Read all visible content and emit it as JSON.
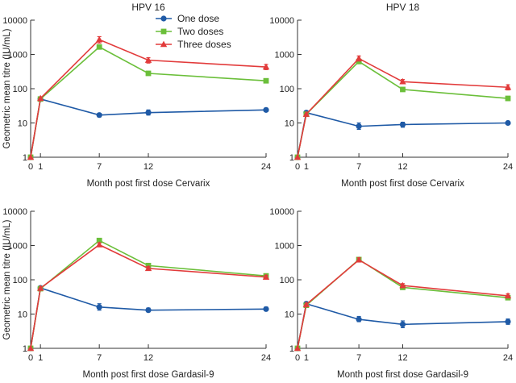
{
  "chart_data": [
    {
      "type": "line",
      "title": "HPV 16",
      "xlabel": "Month post first dose Cervarix",
      "ylabel": "Geometric mean titre (IU/mL)",
      "yscale": "log",
      "ylim": [
        1,
        10000
      ],
      "yticks": [
        1,
        10,
        100,
        1000,
        10000
      ],
      "xlim": [
        0,
        24
      ],
      "xticks": [
        0,
        1,
        7,
        12,
        24
      ],
      "series": [
        {
          "name": "One dose",
          "color": "#1f5aa6",
          "marker": "circle",
          "points": [
            [
              0,
              1
            ],
            [
              1,
              50
            ],
            [
              7,
              17
            ],
            [
              12,
              20
            ],
            [
              24,
              24
            ]
          ],
          "errors": [
            [
              7,
              15,
              19
            ],
            [
              12,
              17,
              24
            ],
            [
              24,
              22,
              27
            ]
          ]
        },
        {
          "name": "Two doses",
          "color": "#6bbf3a",
          "marker": "square",
          "points": [
            [
              0,
              1
            ],
            [
              1,
              50
            ],
            [
              7,
              1650
            ],
            [
              12,
              280
            ],
            [
              24,
              170
            ]
          ],
          "errors": [
            [
              7,
              1450,
              1880
            ],
            [
              12,
              250,
              310
            ],
            [
              24,
              150,
              190
            ]
          ]
        },
        {
          "name": "Three doses",
          "color": "#e23b3b",
          "marker": "triangle",
          "points": [
            [
              0,
              1
            ],
            [
              1,
              52
            ],
            [
              7,
              2700
            ],
            [
              12,
              680
            ],
            [
              24,
              430
            ]
          ],
          "errors": [
            [
              7,
              2150,
              3300
            ],
            [
              12,
              560,
              800
            ],
            [
              24,
              360,
              510
            ]
          ]
        }
      ]
    },
    {
      "type": "line",
      "title": "HPV 18",
      "xlabel": "Month post first dose Cervarix",
      "yscale": "log",
      "ylim": [
        1,
        10000
      ],
      "yticks": [
        1,
        10,
        100,
        1000,
        10000
      ],
      "xlim": [
        0,
        24
      ],
      "xticks": [
        0,
        1,
        7,
        12,
        24
      ],
      "series": [
        {
          "name": "One dose",
          "color": "#1f5aa6",
          "marker": "circle",
          "points": [
            [
              0,
              1
            ],
            [
              1,
              20
            ],
            [
              7,
              8
            ],
            [
              12,
              9
            ],
            [
              24,
              10
            ]
          ],
          "errors": [
            [
              7,
              6.5,
              10
            ],
            [
              12,
              7.5,
              10.5
            ],
            [
              24,
              9,
              11
            ]
          ]
        },
        {
          "name": "Two doses",
          "color": "#6bbf3a",
          "marker": "square",
          "points": [
            [
              0,
              1
            ],
            [
              1,
              18
            ],
            [
              7,
              620
            ],
            [
              12,
              95
            ],
            [
              24,
              52
            ]
          ],
          "errors": [
            [
              7,
              540,
              720
            ],
            [
              12,
              85,
              105
            ],
            [
              24,
              45,
              60
            ]
          ]
        },
        {
          "name": "Three doses",
          "color": "#e23b3b",
          "marker": "triangle",
          "points": [
            [
              0,
              1
            ],
            [
              1,
              18
            ],
            [
              7,
              760
            ],
            [
              12,
              160
            ],
            [
              24,
              110
            ]
          ],
          "errors": [
            [
              7,
              640,
              900
            ],
            [
              12,
              140,
              185
            ],
            [
              24,
              92,
              130
            ]
          ]
        }
      ]
    },
    {
      "type": "line",
      "xlabel": "Month post first dose Gardasil-9",
      "ylabel": "Geometric mean titre (IU/mL)",
      "yscale": "log",
      "ylim": [
        1,
        10000
      ],
      "yticks": [
        1,
        10,
        100,
        1000,
        10000
      ],
      "xlim": [
        0,
        24
      ],
      "xticks": [
        0,
        1,
        7,
        12,
        24
      ],
      "series": [
        {
          "name": "One dose",
          "color": "#1f5aa6",
          "marker": "circle",
          "points": [
            [
              0,
              1
            ],
            [
              1,
              58
            ],
            [
              7,
              16
            ],
            [
              12,
              13
            ],
            [
              24,
              14
            ]
          ],
          "errors": [
            [
              7,
              13,
              20
            ],
            [
              12,
              11.5,
              15
            ],
            [
              24,
              12.5,
              16
            ]
          ]
        },
        {
          "name": "Two doses",
          "color": "#6bbf3a",
          "marker": "square",
          "points": [
            [
              0,
              1
            ],
            [
              1,
              55
            ],
            [
              7,
              1400
            ],
            [
              12,
              260
            ],
            [
              24,
              130
            ]
          ],
          "errors": [
            [
              7,
              1250,
              1600
            ],
            [
              12,
              230,
              290
            ],
            [
              24,
              115,
              145
            ]
          ]
        },
        {
          "name": "Three doses",
          "color": "#e23b3b",
          "marker": "triangle",
          "points": [
            [
              0,
              1
            ],
            [
              1,
              57
            ],
            [
              7,
              1050
            ],
            [
              12,
              215
            ],
            [
              24,
              120
            ]
          ],
          "errors": [
            [
              7,
              930,
              1200
            ],
            [
              12,
              190,
              245
            ],
            [
              24,
              105,
              135
            ]
          ]
        }
      ]
    },
    {
      "type": "line",
      "xlabel": "Month post first dose Gardasil-9",
      "yscale": "log",
      "ylim": [
        1,
        10000
      ],
      "yticks": [
        1,
        10,
        100,
        1000,
        10000
      ],
      "xlim": [
        0,
        24
      ],
      "xticks": [
        0,
        1,
        7,
        12,
        24
      ],
      "series": [
        {
          "name": "One dose",
          "color": "#1f5aa6",
          "marker": "circle",
          "points": [
            [
              0,
              1
            ],
            [
              1,
              20
            ],
            [
              7,
              7
            ],
            [
              12,
              5
            ],
            [
              24,
              6
            ]
          ],
          "errors": [
            [
              7,
              6,
              8.5
            ],
            [
              12,
              4,
              6.3
            ],
            [
              24,
              5,
              7.2
            ]
          ]
        },
        {
          "name": "Two doses",
          "color": "#6bbf3a",
          "marker": "square",
          "points": [
            [
              0,
              1
            ],
            [
              1,
              18
            ],
            [
              7,
              390
            ],
            [
              12,
              60
            ],
            [
              24,
              30
            ]
          ],
          "errors": [
            [
              7,
              340,
              450
            ],
            [
              12,
              53,
              68
            ],
            [
              24,
              26,
              34
            ]
          ]
        },
        {
          "name": "Three doses",
          "color": "#e23b3b",
          "marker": "triangle",
          "points": [
            [
              0,
              1
            ],
            [
              1,
              19
            ],
            [
              7,
              380
            ],
            [
              12,
              68
            ],
            [
              24,
              34
            ]
          ],
          "errors": [
            [
              7,
              330,
              440
            ],
            [
              12,
              60,
              77
            ],
            [
              24,
              30,
              39
            ]
          ]
        }
      ]
    }
  ],
  "legend": {
    "items": [
      {
        "label": "One dose",
        "color": "#1f5aa6",
        "marker": "circle"
      },
      {
        "label": "Two doses",
        "color": "#6bbf3a",
        "marker": "square"
      },
      {
        "label": "Three doses",
        "color": "#e23b3b",
        "marker": "triangle"
      }
    ]
  }
}
